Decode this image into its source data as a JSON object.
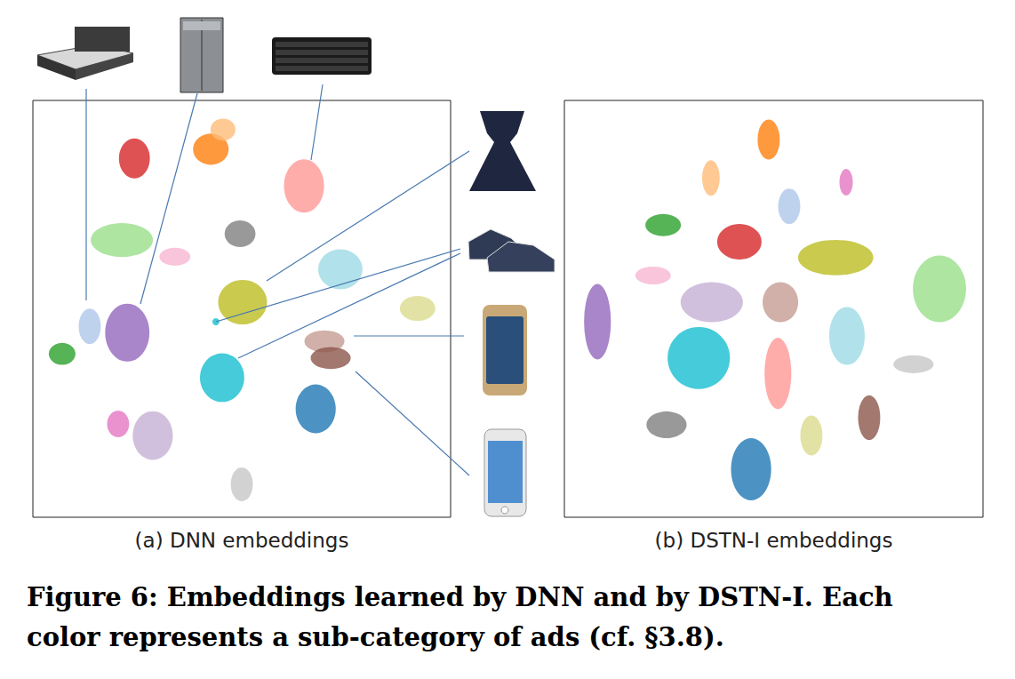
{
  "caption": [
    "Figure 6: Embeddings learned by DNN and by DSTN-I. Each",
    "color represents a sub-category of ads (cf. §3.8)."
  ],
  "chart_data": [
    {
      "type": "scatter",
      "title": "(a) DNN embeddings",
      "xlim": [
        0,
        100
      ],
      "ylim": [
        0,
        100
      ],
      "tick_labels": false,
      "grid": false,
      "x": [
        24.3,
        42.6,
        45.5,
        64.9,
        21.3,
        34.0,
        49.6,
        50.2,
        73.6,
        92.1,
        13.6,
        22.6,
        7.0,
        43.8,
        45.3,
        69.8,
        71.3,
        67.7,
        20.4,
        28.7,
        50.0
      ],
      "y": [
        86.1,
        88.3,
        93.0,
        79.5,
        66.5,
        62.5,
        68.0,
        51.6,
        59.5,
        50.1,
        45.8,
        44.3,
        39.2,
        46.9,
        33.5,
        42.2,
        38.2,
        26.0,
        22.4,
        19.6,
        7.9
      ],
      "width": [
        7.4,
        8.5,
        6.0,
        9.6,
        14.9,
        7.4,
        7.4,
        11.7,
        10.6,
        8.5,
        5.3,
        10.6,
        6.4,
        1.7,
        10.6,
        9.6,
        9.6,
        9.6,
        5.3,
        9.6,
        5.3
      ],
      "height": [
        9.6,
        7.5,
        5.3,
        12.8,
        8.1,
        4.3,
        6.4,
        10.7,
        9.6,
        6.0,
        8.5,
        13.9,
        5.3,
        1.7,
        11.7,
        5.3,
        5.3,
        11.7,
        6.4,
        11.7,
        8.1
      ],
      "colors": [
        "#d62728",
        "#ff7f0e",
        "#ffbb78",
        "#ff9896",
        "#98df8a",
        "#f7b6d2",
        "#7f7f7f",
        "#bcbd22",
        "#9edae5",
        "#dbdb8d",
        "#aec7e8",
        "#9467bd",
        "#2ca02c",
        "#17becf",
        "#17becf",
        "#c49c94",
        "#8c564b",
        "#1f77b4",
        "#e377c2",
        "#c5b0d5",
        "#c7c7c7"
      ]
    },
    {
      "type": "scatter",
      "title": "(b) DSTN-I embeddings",
      "xlim": [
        0,
        100
      ],
      "ylim": [
        0,
        100
      ],
      "tick_labels": false,
      "grid": false,
      "x": [
        48.8,
        35.0,
        67.3,
        53.7,
        23.6,
        41.8,
        64.8,
        89.6,
        21.2,
        35.2,
        51.6,
        7.9,
        67.5,
        32.1,
        51.0,
        83.4,
        24.4,
        59.0,
        72.8,
        44.6
      ],
      "y": [
        90.6,
        81.4,
        80.4,
        74.6,
        70.1,
        66.1,
        62.3,
        54.8,
        58.0,
        51.6,
        51.6,
        46.9,
        43.5,
        38.2,
        34.5,
        36.7,
        22.2,
        19.6,
        23.9,
        11.5
      ],
      "width": [
        5.3,
        4.2,
        3.2,
        5.3,
        8.5,
        10.6,
        18.0,
        12.7,
        8.5,
        14.9,
        8.5,
        6.4,
        8.5,
        14.9,
        6.4,
        9.6,
        9.6,
        5.3,
        5.3,
        9.6
      ],
      "height": [
        9.6,
        8.5,
        6.4,
        8.5,
        5.3,
        8.5,
        8.5,
        16.0,
        4.3,
        9.6,
        9.6,
        18.1,
        13.9,
        14.9,
        17.1,
        4.3,
        6.4,
        9.6,
        10.7,
        14.9
      ],
      "colors": [
        "#ff7f0e",
        "#ffbb78",
        "#e377c2",
        "#aec7e8",
        "#2ca02c",
        "#d62728",
        "#bcbd22",
        "#98df8a",
        "#f7b6d2",
        "#c5b0d5",
        "#c49c94",
        "#9467bd",
        "#9edae5",
        "#17becf",
        "#ff9896",
        "#c7c7c7",
        "#7f7f7f",
        "#dbdb8d",
        "#8c564b",
        "#1f77b4"
      ]
    }
  ]
}
